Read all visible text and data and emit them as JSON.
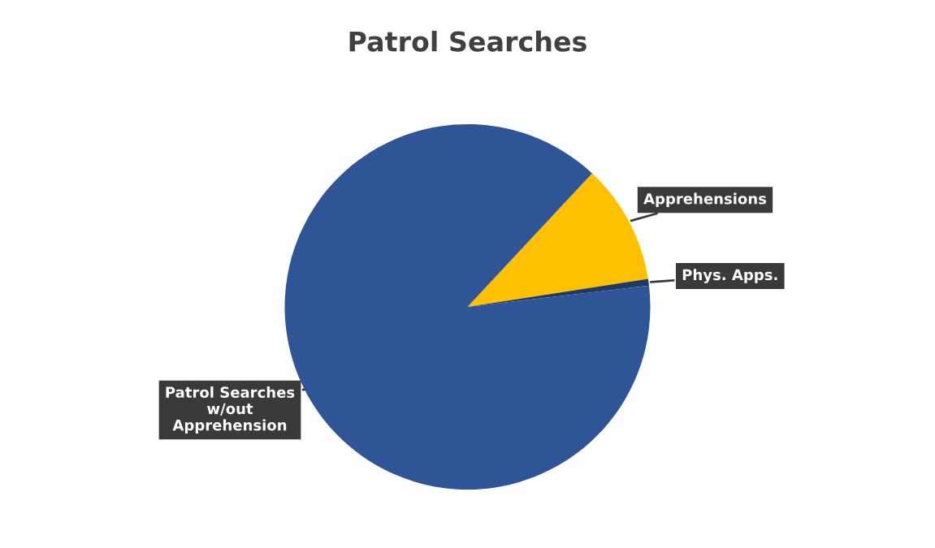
{
  "chart_data": {
    "type": "pie",
    "title": "Patrol Searches",
    "categories": [
      "Apprehensions",
      "Phys. Apps.",
      "Patrol Searches\nw/out\nApprehension"
    ],
    "values": [
      10.6,
      0.6,
      88.8
    ],
    "colors": [
      "#ffc000",
      "#203864",
      "#2f5597"
    ]
  }
}
